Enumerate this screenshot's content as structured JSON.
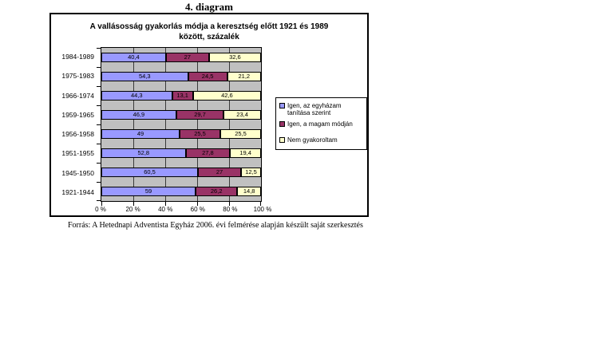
{
  "page_title": "4. diagram",
  "footer": {
    "source_text": "Forrás: A Hetednapi Adventista Egyház 2006. évi felmérése alapján készült saját szerkesztés"
  },
  "chart_data": {
    "type": "bar",
    "orientation": "horizontal",
    "stacked": true,
    "unit": "percent",
    "title": "A vallásosság gyakorlás módja a keresztség előtt 1921 és 1989 között, százalék",
    "title_lines": [
      "A vallásosság gyakorlás módja a keresztség előtt 1921 és 1989",
      "között, százalék"
    ],
    "categories": [
      "1984-1989",
      "1975-1983",
      "1966-1974",
      "1959-1965",
      "1956-1958",
      "1951-1955",
      "1945-1950",
      "1921-1944"
    ],
    "series": [
      {
        "name": "Igen, az egyházam tanítása szerint",
        "color": "#9999FF",
        "values": [
          40.4,
          54.3,
          44.3,
          46.9,
          49,
          52.8,
          60.5,
          59
        ],
        "labels": [
          "40,4",
          "54,3",
          "44,3",
          "46,9",
          "49",
          "52,8",
          "60,5",
          "59"
        ]
      },
      {
        "name": "Igen, a magam módján",
        "color": "#993366",
        "values": [
          27,
          24.5,
          13.1,
          29.7,
          25.5,
          27.8,
          27,
          26.2
        ],
        "labels": [
          "27",
          "24,5",
          "13,1",
          "29,7",
          "25,5",
          "27,8",
          "27",
          "26,2"
        ]
      },
      {
        "name": "Nem gyakoroltam",
        "color": "#FFFFCC",
        "values": [
          32.6,
          21.2,
          42.6,
          23.4,
          25.5,
          19.4,
          12.5,
          14.8
        ],
        "labels": [
          "32,6",
          "21,2",
          "42,6",
          "23,4",
          "25,5",
          "19,4",
          "12,5",
          "14,8"
        ]
      }
    ],
    "x_ticks": [
      "0 %",
      "20 %",
      "40 %",
      "60 %",
      "80 %",
      "100 %"
    ],
    "xlim": [
      0,
      100
    ],
    "plot_background": "#C0C0C0",
    "gridlines": "vertical",
    "legend_position": "right"
  }
}
